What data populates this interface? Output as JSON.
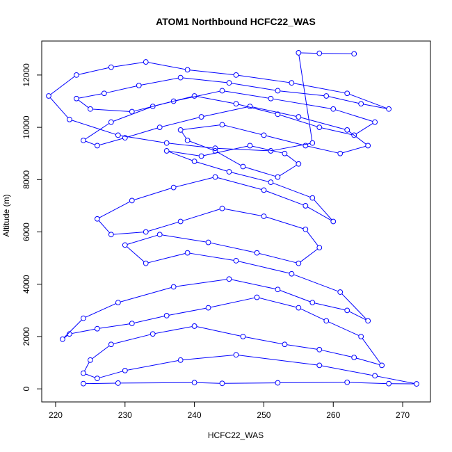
{
  "chart_data": {
    "type": "scatter",
    "title": "ATOM1 Northbound HCFC22_WAS",
    "xlabel": "HCFC22_WAS",
    "ylabel": "Altitude (m)",
    "xlim": [
      218,
      274
    ],
    "ylim": [
      -500,
      13300
    ],
    "x_ticks": [
      220,
      230,
      240,
      250,
      260,
      270
    ],
    "y_ticks": [
      0,
      2000,
      4000,
      6000,
      8000,
      10000,
      12000
    ],
    "grid": false,
    "legend": "none",
    "colors": {
      "series": "#0000ff",
      "axis": "#000000",
      "background": "#ffffff"
    },
    "marker": "open-circle",
    "connect_points": true,
    "series": [
      {
        "x": [
          224,
          229,
          240,
          244,
          252,
          262,
          268,
          272,
          266,
          258,
          246,
          238,
          230,
          226,
          224,
          225,
          228,
          234,
          240,
          247,
          253,
          258,
          263,
          267,
          264,
          259,
          255,
          249,
          242,
          236,
          231,
          226,
          222,
          221,
          224,
          229,
          237,
          245,
          252,
          257,
          262,
          265,
          261,
          254,
          246,
          239,
          233,
          230,
          235,
          242,
          249,
          255,
          258,
          256,
          250,
          244,
          238,
          233,
          228,
          226,
          231,
          237,
          243,
          250,
          256,
          260,
          257,
          251,
          245,
          240,
          236,
          241,
          248,
          253,
          255,
          252,
          247,
          243,
          239,
          238,
          244,
          250,
          256,
          261,
          265,
          262,
          255,
          248,
          241,
          235,
          230,
          226,
          224,
          228,
          234,
          240,
          246,
          252,
          258,
          263,
          266,
          260,
          251,
          244,
          237,
          231,
          225,
          223,
          227,
          232,
          238,
          245,
          252,
          259,
          264,
          268,
          262,
          254,
          246,
          239,
          233,
          228,
          223,
          219,
          222,
          229,
          236,
          243,
          251,
          257,
          255,
          258,
          263
        ],
        "y": [
          200,
          220,
          240,
          210,
          230,
          250,
          200,
          190,
          500,
          900,
          1300,
          1100,
          700,
          400,
          600,
          1100,
          1700,
          2100,
          2400,
          2000,
          1700,
          1500,
          1200,
          900,
          2000,
          2600,
          3100,
          3500,
          3100,
          2800,
          2500,
          2300,
          2100,
          1900,
          2700,
          3300,
          3900,
          4200,
          3800,
          3300,
          3000,
          2600,
          3700,
          4400,
          4900,
          5200,
          4800,
          5500,
          5900,
          5600,
          5200,
          4800,
          5400,
          6100,
          6600,
          6900,
          6400,
          6000,
          5900,
          6500,
          7200,
          7700,
          8100,
          7600,
          7000,
          6400,
          7300,
          7900,
          8300,
          8700,
          9100,
          8900,
          9300,
          9000,
          8600,
          8100,
          8500,
          9100,
          9500,
          9900,
          10100,
          9700,
          9300,
          9000,
          9300,
          9900,
          10400,
          10800,
          10400,
          10000,
          9600,
          9300,
          9500,
          10200,
          10800,
          11200,
          10900,
          10500,
          10000,
          9700,
          10200,
          10700,
          11100,
          11400,
          11000,
          10600,
          10700,
          11100,
          11300,
          11600,
          11900,
          11700,
          11400,
          11200,
          10900,
          10700,
          11300,
          11700,
          12000,
          12200,
          12500,
          12300,
          12000,
          11200,
          10300,
          9700,
          9400,
          9200,
          9100,
          9400,
          12850,
          12830,
          12810
        ]
      }
    ]
  }
}
